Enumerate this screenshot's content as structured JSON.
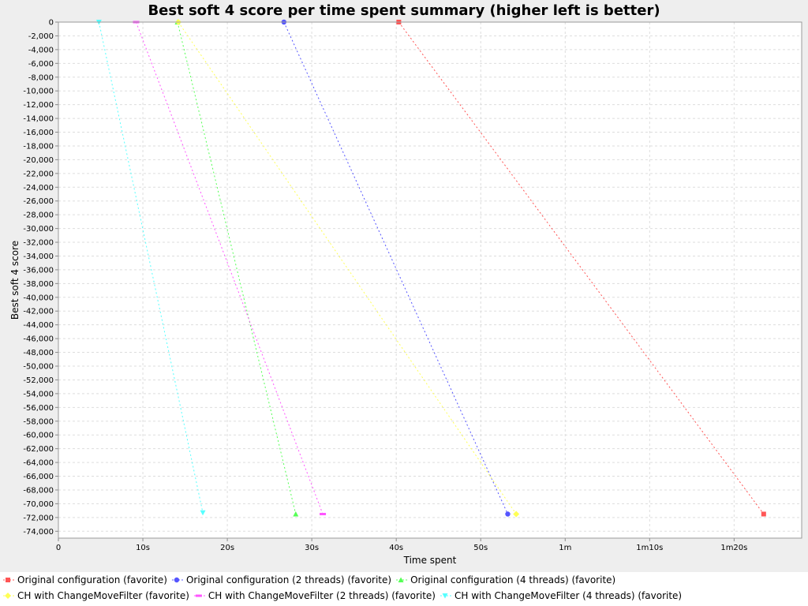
{
  "chart_data": {
    "type": "line",
    "title": "Best soft 4 score per time spent summary (higher left is better)",
    "xlabel": "Time spent",
    "ylabel": "Best soft 4 score",
    "xlim": [
      0,
      88
    ],
    "ylim": [
      -75000,
      0
    ],
    "x_ticks": [
      {
        "value": 0,
        "label": "0"
      },
      {
        "value": 10,
        "label": "10s"
      },
      {
        "value": 20,
        "label": "20s"
      },
      {
        "value": 30,
        "label": "30s"
      },
      {
        "value": 40,
        "label": "40s"
      },
      {
        "value": 50,
        "label": "50s"
      },
      {
        "value": 60,
        "label": "1m"
      },
      {
        "value": 70,
        "label": "1m10s"
      },
      {
        "value": 80,
        "label": "1m20s"
      }
    ],
    "y_ticks": [
      0,
      -2000,
      -4000,
      -6000,
      -8000,
      -10000,
      -12000,
      -14000,
      -16000,
      -18000,
      -20000,
      -22000,
      -24000,
      -26000,
      -28000,
      -30000,
      -32000,
      -34000,
      -36000,
      -38000,
      -40000,
      -42000,
      -44000,
      -46000,
      -48000,
      -50000,
      -52000,
      -54000,
      -56000,
      -58000,
      -60000,
      -62000,
      -64000,
      -66000,
      -68000,
      -70000,
      -72000,
      -74000
    ],
    "y_tick_labels": [
      "0",
      "-2,000",
      "-4,000",
      "-6,000",
      "-8,000",
      "-10,000",
      "-12,000",
      "-14,000",
      "-16,000",
      "-18,000",
      "-20,000",
      "-22,000",
      "-24,000",
      "-26,000",
      "-28,000",
      "-30,000",
      "-32,000",
      "-34,000",
      "-36,000",
      "-38,000",
      "-40,000",
      "-42,000",
      "-44,000",
      "-46,000",
      "-48,000",
      "-50,000",
      "-52,000",
      "-54,000",
      "-56,000",
      "-58,000",
      "-60,000",
      "-62,000",
      "-64,000",
      "-66,000",
      "-68,000",
      "-70,000",
      "-72,000",
      "-74,000"
    ],
    "grid": true,
    "legend_position": "bottom",
    "series": [
      {
        "name": "Original configuration (favorite)",
        "color": "#ff5555",
        "marker": "square",
        "points": [
          [
            40.3,
            0
          ],
          [
            83.5,
            -71500
          ]
        ]
      },
      {
        "name": "Original configuration (2 threads) (favorite)",
        "color": "#5555ff",
        "marker": "circle",
        "points": [
          [
            26.7,
            0
          ],
          [
            53.2,
            -71500
          ]
        ]
      },
      {
        "name": "Original configuration (4 threads) (favorite)",
        "color": "#55ff55",
        "marker": "triangle-up",
        "points": [
          [
            14.1,
            0
          ],
          [
            28.1,
            -71500
          ]
        ]
      },
      {
        "name": "CH with ChangeMoveFilter (favorite)",
        "color": "#ffff55",
        "marker": "diamond",
        "points": [
          [
            14.2,
            0
          ],
          [
            54.2,
            -71500
          ]
        ]
      },
      {
        "name": "CH with ChangeMoveFilter (2 threads) (favorite)",
        "color": "#ff55ff",
        "marker": "rect-h",
        "points": [
          [
            9.2,
            0
          ],
          [
            31.3,
            -71500
          ]
        ]
      },
      {
        "name": "CH with ChangeMoveFilter (4 threads) (favorite)",
        "color": "#55ffff",
        "marker": "triangle-down",
        "points": [
          [
            4.8,
            0
          ],
          [
            17.1,
            -71300
          ]
        ]
      }
    ]
  }
}
